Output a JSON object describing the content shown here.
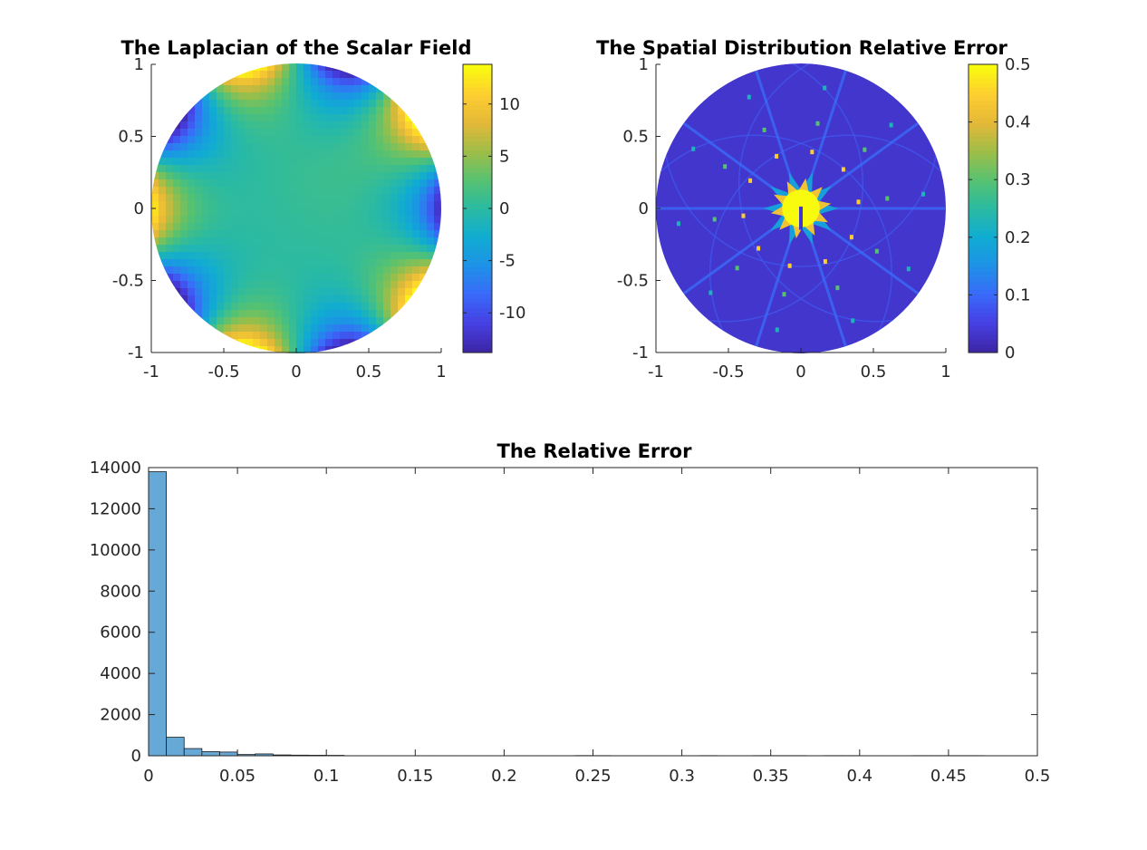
{
  "chart_data": [
    {
      "type": "heatmap",
      "title": "The Laplacian of the Scalar Field",
      "xlabel": "",
      "ylabel": "",
      "xlim": [
        -1,
        1
      ],
      "ylim": [
        -1,
        1
      ],
      "x_ticks": [
        "-1",
        "-0.5",
        "0",
        "0.5",
        "1"
      ],
      "y_ticks": [
        "1",
        "0.5",
        "0",
        "-0.5",
        "-1"
      ],
      "domain_shape": "unit disk",
      "colormap": "parula",
      "colorbar": {
        "range": [
          -13.8,
          13.8
        ],
        "ticks": [
          "10",
          "5",
          "0",
          "-5",
          "-10"
        ],
        "tick_values": [
          10,
          5,
          0,
          -5,
          -10
        ]
      },
      "field_description": "five-fold symmetric pattern: positive lobes near the rim at angles 180, 108, 36, -36, -108 degrees; negative lobes at 144, 72, 0, -72, -144 degrees; near zero in the interior"
    },
    {
      "type": "heatmap",
      "title": "The Spatial Distribution Relative Error",
      "xlabel": "",
      "ylabel": "",
      "xlim": [
        -1,
        1
      ],
      "ylim": [
        -1,
        1
      ],
      "x_ticks": [
        "-1",
        "-0.5",
        "0",
        "0.5",
        "1"
      ],
      "y_ticks": [
        "1",
        "0.5",
        "0",
        "-0.5",
        "-1"
      ],
      "domain_shape": "unit disk",
      "colormap": "parula",
      "colorbar": {
        "range": [
          0,
          0.5
        ],
        "ticks": [
          "0.5",
          "0.4",
          "0.3",
          "0.2",
          "0.1",
          "0"
        ],
        "tick_values": [
          0.5,
          0.4,
          0.3,
          0.2,
          0.1,
          0
        ]
      },
      "field_description": "mostly near 0; saturated (>=0.5) region around the centre within radius ~0.2 forming a star; streaks along 10 rays and scattered hot spots"
    },
    {
      "type": "bar",
      "title": "The Relative Error",
      "xlabel": "",
      "ylabel": "",
      "xlim": [
        0,
        0.5
      ],
      "ylim": [
        0,
        14000
      ],
      "x_ticks": [
        "0",
        "0.05",
        "0.1",
        "0.15",
        "0.2",
        "0.25",
        "0.3",
        "0.35",
        "0.4",
        "0.45",
        "0.5"
      ],
      "y_ticks": [
        "0",
        "2000",
        "4000",
        "6000",
        "8000",
        "10000",
        "12000",
        "14000"
      ],
      "bin_width": 0.01,
      "bin_edges_start": 0,
      "values": [
        13800,
        900,
        350,
        200,
        180,
        60,
        90,
        40,
        30,
        25,
        20,
        5,
        5,
        5,
        5,
        5,
        5,
        5,
        5,
        5,
        5,
        5,
        5,
        5,
        10,
        8,
        5,
        5,
        5,
        5,
        5,
        8,
        5,
        5,
        8,
        8,
        8,
        5,
        8,
        8,
        5,
        5,
        5,
        8,
        8,
        8,
        8,
        5,
        5,
        5
      ],
      "bar_color": "#66a8d6"
    }
  ]
}
